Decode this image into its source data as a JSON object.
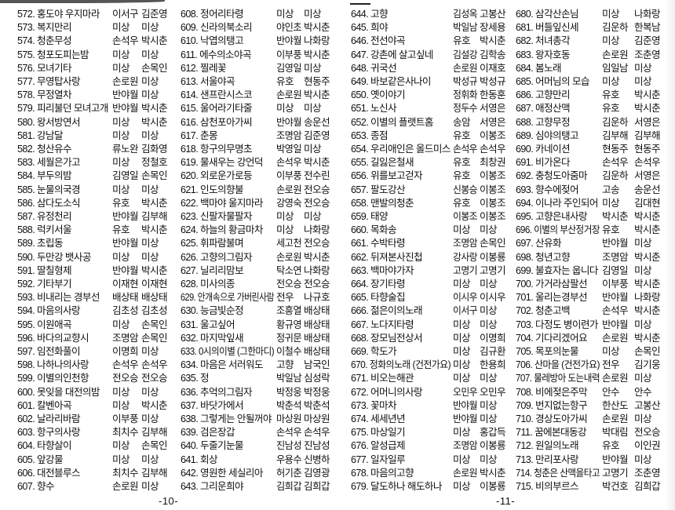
{
  "pages": [
    {
      "number": "-10-"
    },
    {
      "number": "-11-"
    }
  ],
  "columns": [
    {
      "rows": [
        [
          "572. 홍도야 우지마라",
          "이서구",
          "김준영"
        ],
        [
          "573. 복지만리",
          "미상",
          "미상"
        ],
        [
          "574. 청춘무성",
          "손석우",
          "박시춘"
        ],
        [
          "575. 청포도피는밤",
          "미상",
          "미상"
        ],
        [
          "576. 모녀기타",
          "미상",
          "손목인"
        ],
        [
          "577. 무영탑사랑",
          "손로원",
          "미상"
        ],
        [
          "578. 무정열차",
          "반야월",
          "미상"
        ],
        [
          "579. 피리불던 모녀고개",
          "반야월",
          "박시춘"
        ],
        [
          "580. 왕서방연서",
          "미상",
          "박시춘"
        ],
        [
          "581. 강남달",
          "미상",
          "미상"
        ],
        [
          "582. 청산유수",
          "류노완",
          "김화영"
        ],
        [
          "583. 세월은가고",
          "미상",
          "정철호"
        ],
        [
          "584. 부두의밤",
          "김영일",
          "손목인"
        ],
        [
          "585. 눈물의국경",
          "미상",
          "미상"
        ],
        [
          "586. 삼다도소식",
          "유호",
          "박시춘"
        ],
        [
          "587. 유정천리",
          "반야월",
          "김부해"
        ],
        [
          "588. 럭키서울",
          "유호",
          "박시춘"
        ],
        [
          "589. 초립동",
          "반야월",
          "미상"
        ],
        [
          "590. 두만강 뱃사공",
          "미상",
          "미상"
        ],
        [
          "591. 딸칠형제",
          "반야월",
          "박시춘"
        ],
        [
          "592. 기타부기",
          "이재현",
          "이재현"
        ],
        [
          "593. 비내리는 경부선",
          "배상태",
          "배상태"
        ],
        [
          "594. 마음의사랑",
          "김초성",
          "김초성"
        ],
        [
          "595. 이원애곡",
          "미상",
          "손목인"
        ],
        [
          "596. 바다의교향시",
          "조명암",
          "손목인"
        ],
        [
          "597. 임전화풀이",
          "이명희",
          "미상"
        ],
        [
          "598. 나하나의사랑",
          "손석우",
          "손석우"
        ],
        [
          "599. 이별의인천항",
          "전오승",
          "전오승"
        ],
        [
          "600. 못잊을 대전의밤",
          "미상",
          "미상"
        ],
        [
          "601. 칼벤아곡",
          "미상",
          "박시춘"
        ],
        [
          "602. 날라리바람",
          "이부풍",
          "미상"
        ],
        [
          "603. 항구의사랑",
          "최치수",
          "김부해"
        ],
        [
          "604. 타향살이",
          "미상",
          "손목인"
        ],
        [
          "605. 앞강물",
          "미상",
          "미상"
        ],
        [
          "606. 대전블루스",
          "최치수",
          "김부해"
        ],
        [
          "607. 향수",
          "손로원",
          "미상"
        ]
      ]
    },
    {
      "rows": [
        [
          "608. 정어리타령",
          "미상",
          "미상"
        ],
        [
          "609. 신라의북소리",
          "야인초",
          "박시춘"
        ],
        [
          "610. 낙엽의탱고",
          "반야월",
          "나화랑"
        ],
        [
          "611. 에수의소야곡",
          "이부풍",
          "박시춘"
        ],
        [
          "612. 찔레꽃",
          "김영일",
          "미상"
        ],
        [
          "613. 서울야곡",
          "유호",
          "현동주"
        ],
        [
          "614. 샌프란시스코",
          "손로원",
          "박시춘"
        ],
        [
          "615. 울어라기타줄",
          "미상",
          "미상"
        ],
        [
          "616. 삼천포아가씨",
          "반야월",
          "송운선"
        ],
        [
          "617. 춘몽",
          "조명암",
          "김준영"
        ],
        [
          "618. 항구의무명초",
          "박영일",
          "미상"
        ],
        [
          "619. 물새우는 강언덕",
          "손석우",
          "박시춘"
        ],
        [
          "620. 외로운가로등",
          "이부풍",
          "전수린"
        ],
        [
          "621. 인도의향불",
          "손로원",
          "전오승"
        ],
        [
          "622. 백마야 울지마라",
          "강영숙",
          "전오승"
        ],
        [
          "623. 신팔자물팔자",
          "미상",
          "미상"
        ],
        [
          "624. 하늘의 황금마차",
          "미상",
          "나화랑"
        ],
        [
          "625. 휘파람불며",
          "세고천",
          "전오승"
        ],
        [
          "626. 고향의그림자",
          "손로원",
          "박시춘"
        ],
        [
          "627. 닐리리맘보",
          "탁소연",
          "나화랑"
        ],
        [
          "628. 미사의종",
          "전오승",
          "전오승"
        ],
        [
          "629. 안개속으로 가버린사람",
          "전우",
          "나규호"
        ],
        [
          "630. 능금빛순정",
          "조흥열",
          "배상태"
        ],
        [
          "631. 울고싶어",
          "황규영",
          "배상태"
        ],
        [
          "632. 마지막잎새",
          "정귀문",
          "배상태"
        ],
        [
          "633. 0시의이별 (그한마디)",
          "이철수",
          "배상태"
        ],
        [
          "634. 마음은 서러워도",
          "고향",
          "남국인"
        ],
        [
          "635. 정",
          "박일남",
          "심성락"
        ],
        [
          "636. 추억의그림자",
          "박정웅",
          "박정웅"
        ],
        [
          "637. 바닷가에서",
          "박춘석",
          "박춘석"
        ],
        [
          "638. 그렇게는 안될꺼야",
          "마상원",
          "마상원"
        ],
        [
          "639. 검은장갑",
          "손석우",
          "손석우"
        ],
        [
          "640. 두줄기눈물",
          "진남성",
          "진남성"
        ],
        [
          "641. 회상",
          "우용수",
          "신병하"
        ],
        [
          "642. 영원한 세실리아",
          "허기춘",
          "김영광"
        ],
        [
          "643. 그리운희야",
          "김희갑",
          "김희갑"
        ]
      ]
    },
    {
      "rows": [
        [
          "644. 고향",
          "김성옥",
          "고봉산"
        ],
        [
          "645. 희야",
          "박일남",
          "장세용"
        ],
        [
          "646. 전선야곡",
          "유호",
          "박시춘"
        ],
        [
          "647. 강촌에 살고싶네",
          "김설강",
          "김학송"
        ],
        [
          "648. 귀국선",
          "손로원",
          "이재호"
        ],
        [
          "649. 바보같은사나이",
          "박성규",
          "박성규"
        ],
        [
          "650. 옛이야기",
          "정휘화",
          "한동훈"
        ],
        [
          "651. 노신사",
          "정두수",
          "서영은"
        ],
        [
          "652. 이별의 플랫트홈",
          "송암",
          "서영은"
        ],
        [
          "653. 종점",
          "유호",
          "이봉조"
        ],
        [
          "654. 우리애인은 올드미스",
          "손석우",
          "손석우"
        ],
        [
          "655. 길잃은철새",
          "유호",
          "최창권"
        ],
        [
          "656. 위를보고걷자",
          "유호",
          "이봉조"
        ],
        [
          "657. 팔도강산",
          "신봉승",
          "이봉조"
        ],
        [
          "658. 맨발의청춘",
          "유호",
          "이봉조"
        ],
        [
          "659. 태양",
          "이봉조",
          "이봉조"
        ],
        [
          "660. 목화송",
          "미상",
          "미상"
        ],
        [
          "661. 수박타령",
          "조명암",
          "손목인"
        ],
        [
          "662. 뒤져본사진첩",
          "강사랑",
          "이봉룡"
        ],
        [
          "663. 백마야가자",
          "고명기",
          "고명기"
        ],
        [
          "664. 장기타령",
          "미상",
          "미상"
        ],
        [
          "665. 타향술집",
          "이시우",
          "이시우"
        ],
        [
          "666. 젊은이의노래",
          "이서구",
          "미상"
        ],
        [
          "667. 노다지타령",
          "미상",
          "미상"
        ],
        [
          "668. 장모님전상서",
          "미상",
          "이명희"
        ],
        [
          "669. 학도가",
          "미상",
          "김규환"
        ],
        [
          "670. 정화의노래 (건전가요)",
          "미상",
          "한용희"
        ],
        [
          "671. 비오는해관",
          "미상",
          "미상"
        ],
        [
          "672. 어머니의사랑",
          "오민우",
          "오민우"
        ],
        [
          "673. 꽃마차",
          "반야월",
          "미상"
        ],
        [
          "674. 세세년년",
          "반야월",
          "미상"
        ],
        [
          "675. 마상일기",
          "미상",
          "홍갑득"
        ],
        [
          "676. 알성급제",
          "조명암",
          "이봉룡"
        ],
        [
          "677. 일자일루",
          "미상",
          "미상"
        ],
        [
          "678. 마음의고향",
          "손로원",
          "박시춘"
        ],
        [
          "679. 달도하나 해도하나",
          "미상",
          "이봉룡"
        ]
      ]
    },
    {
      "rows": [
        [
          "680. 삼각산손님",
          "미상",
          "나화랑"
        ],
        [
          "681. 버들잎신세",
          "김운하",
          "한복남"
        ],
        [
          "682. 처녀총각",
          "미상",
          "김준영"
        ],
        [
          "683. 왕자호동",
          "손로원",
          "조춘영"
        ],
        [
          "684. 봄노래",
          "임일남",
          "미상"
        ],
        [
          "685. 어머님의 모습",
          "미상",
          "미상"
        ],
        [
          "686. 고향만리",
          "유호",
          "박시춘"
        ],
        [
          "687. 애정산맥",
          "유호",
          "박시춘"
        ],
        [
          "688. 고향무정",
          "김운하",
          "서영은"
        ],
        [
          "689. 심야의탱고",
          "김부해",
          "김부해"
        ],
        [
          "690. 카네이션",
          "현동주",
          "현동주"
        ],
        [
          "691. 비가온다",
          "손석우",
          "손석우"
        ],
        [
          "692. 충청도아줌마",
          "김운하",
          "서영은"
        ],
        [
          "693. 향수에젖어",
          "고송",
          "송운선"
        ],
        [
          "694. 이나라 주인되어",
          "미상",
          "김대현"
        ],
        [
          "695. 고향은내사랑",
          "박시춘",
          "박시춘"
        ],
        [
          "696. 이별의 부산정거장",
          "유호",
          "박시춘"
        ],
        [
          "697. 산유화",
          "반야월",
          "미상"
        ],
        [
          "698. 청년고향",
          "조명암",
          "박시춘"
        ],
        [
          "699. 불효자는 웁니다",
          "김영일",
          "미상"
        ],
        [
          "700. 가거라삼팔선",
          "이부풍",
          "박시춘"
        ],
        [
          "701. 울리는경부선",
          "반야월",
          "나화랑"
        ],
        [
          "702. 청춘고백",
          "손석우",
          "박시춘"
        ],
        [
          "703. 다정도 병이련가",
          "반야월",
          "미상"
        ],
        [
          "704. 기다리겠어요",
          "손로원",
          "박시춘"
        ],
        [
          "705. 목포의눈물",
          "미상",
          "손목인"
        ],
        [
          "706. 산마을 (건전가요)",
          "전우",
          "김기웅"
        ],
        [
          "707. 물레방아 도는내력",
          "손로원",
          "미상"
        ],
        [
          "708. 비에젖은주막",
          "안수",
          "안수"
        ],
        [
          "709. 번지없는항구",
          "한산도",
          "고봉산"
        ],
        [
          "710. 경상도아가씨",
          "손로원",
          "미상"
        ],
        [
          "711. 꿈에본대동강",
          "박대림",
          "전오승"
        ],
        [
          "712. 원일의노래",
          "유호",
          "이인권"
        ],
        [
          "713. 만리포사랑",
          "반야월",
          "미상"
        ],
        [
          "714. 청춘은 산맥을타고",
          "고명기",
          "조춘영"
        ],
        [
          "715. 비의부르스",
          "박건호",
          "김희갑"
        ]
      ]
    }
  ]
}
